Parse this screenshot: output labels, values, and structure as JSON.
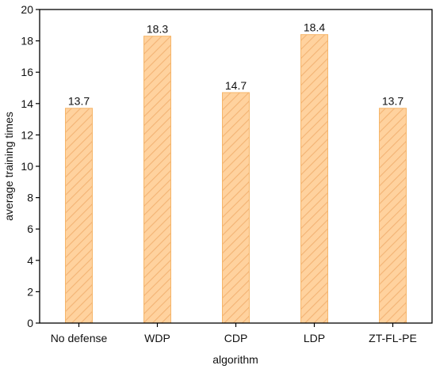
{
  "chart_data": {
    "type": "bar",
    "categories": [
      "No defense",
      "WDP",
      "CDP",
      "LDP",
      "ZT-FL-PE"
    ],
    "values": [
      13.7,
      18.3,
      14.7,
      18.4,
      13.7
    ],
    "data_labels": [
      "13.7",
      "18.3",
      "14.7",
      "18.4",
      "13.7"
    ],
    "xlabel": "algorithm",
    "ylabel": "average training times",
    "ylim": [
      0,
      20
    ],
    "yticks": [
      0,
      2,
      4,
      6,
      8,
      10,
      12,
      14,
      16,
      18,
      20
    ],
    "grid": false,
    "legend": "none",
    "bar_fill": "#ffd29e",
    "bar_stroke": "#f6b66a",
    "hatch_color": "#f3b374",
    "axis_color": "#000000"
  }
}
